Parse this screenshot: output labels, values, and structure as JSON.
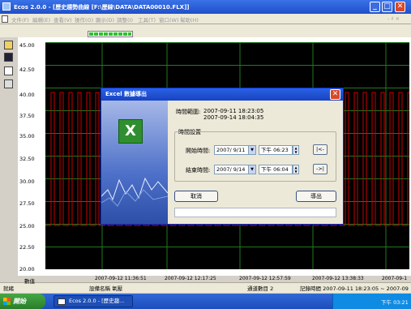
{
  "window": {
    "title": "Ecos 2.0.0 - [歷史趨勢曲線 [F:\\歷線\\DATA\\DATA00010.FLX]]",
    "min": "_",
    "max": "□",
    "close": "✕"
  },
  "menu": {
    "items": [
      "文件(F)",
      "編輯(E)",
      "查看(V)",
      "操作(O)",
      "顯示(D)",
      "調整(I)",
      "工具(T)",
      "窗口(W)",
      "幫助(H)"
    ],
    "right": "- ♯ ×"
  },
  "chart": {
    "y_ticks": [
      "42.50",
      "40.00",
      "37.50",
      "35.00",
      "32.50",
      "30.00",
      "27.50",
      "25.00",
      "22.50",
      "20.00"
    ],
    "x_ticks": [
      "2007-09-12 11:36:51",
      "2007-09-12 12:17:25",
      "2007-09-12 12:57:59",
      "2007-09-12 13:38:33",
      "2007-09-1"
    ],
    "y_top_partial": "45.00",
    "line_color": "#c80000",
    "grid_color": "#1f7a1f"
  },
  "status": {
    "label": "數值",
    "ready": "就緒",
    "device": "設備名稱 氧壓",
    "channel": "通道數目 2",
    "record": "記錄時間 2007-09-11 18:23:05 ~ 2007-09"
  },
  "taskbar": {
    "start": "開始",
    "task": "Ecos 2.0.0 - [歷史趨...",
    "clock": "下午 03:21"
  },
  "dialog": {
    "title": "Excel 數據導出",
    "range_label": "時間範圍:",
    "range_start": "2007-09-11 18:23:05",
    "range_end": "2007-09-14 18:04:35",
    "group_label": "時間設置",
    "start_label": "開始時間:",
    "start_date": "2007/ 9/11",
    "start_time": "下午 06:23",
    "start_jump": "|<-",
    "end_label": "結束時間:",
    "end_date": "2007/ 9/14",
    "end_time": "下午 06:04",
    "end_jump": "->|",
    "cancel": "取消",
    "export": "導出",
    "close": "✕"
  }
}
